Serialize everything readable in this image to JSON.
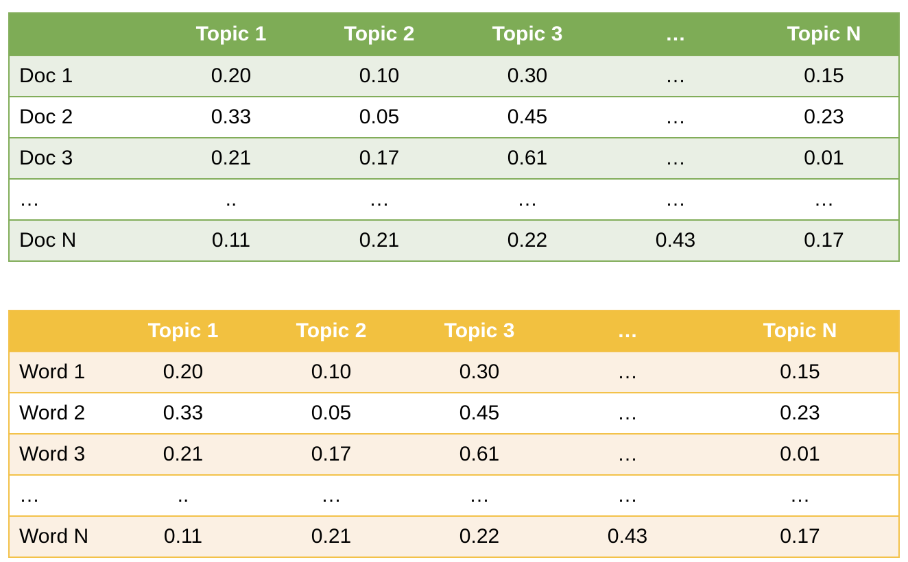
{
  "colors": {
    "doc_header_bg": "#7eac56",
    "doc_row_shade": "#e9efe4",
    "doc_border": "#82ad5a",
    "word_header_bg": "#f2c140",
    "word_row_shade": "#fbf0e3",
    "word_border": "#f3c24a",
    "header_text": "#ffffff"
  },
  "doc_topic_table": {
    "headers": [
      "",
      "Topic 1",
      "Topic 2",
      "Topic 3",
      "…",
      "Topic N"
    ],
    "rows": [
      [
        "Doc 1",
        "0.20",
        "0.10",
        "0.30",
        "…",
        "0.15"
      ],
      [
        "Doc 2",
        "0.33",
        "0.05",
        "0.45",
        "…",
        "0.23"
      ],
      [
        "Doc 3",
        "0.21",
        "0.17",
        "0.61",
        "…",
        "0.01"
      ],
      [
        "…",
        "..",
        "…",
        "…",
        "…",
        "…"
      ],
      [
        "Doc N",
        "0.11",
        "0.21",
        "0.22",
        "0.43",
        "0.17"
      ]
    ]
  },
  "word_topic_table": {
    "headers": [
      "",
      "Topic 1",
      "Topic 2",
      "Topic 3",
      "…",
      "Topic N"
    ],
    "rows": [
      [
        "Word 1",
        "0.20",
        "0.10",
        "0.30",
        "…",
        "0.15"
      ],
      [
        "Word 2",
        "0.33",
        "0.05",
        "0.45",
        "…",
        "0.23"
      ],
      [
        "Word 3",
        "0.21",
        "0.17",
        "0.61",
        "…",
        "0.01"
      ],
      [
        "…",
        "..",
        "…",
        "…",
        "…",
        "…"
      ],
      [
        "Word N",
        "0.11",
        "0.21",
        "0.22",
        "0.43",
        "0.17"
      ]
    ]
  }
}
